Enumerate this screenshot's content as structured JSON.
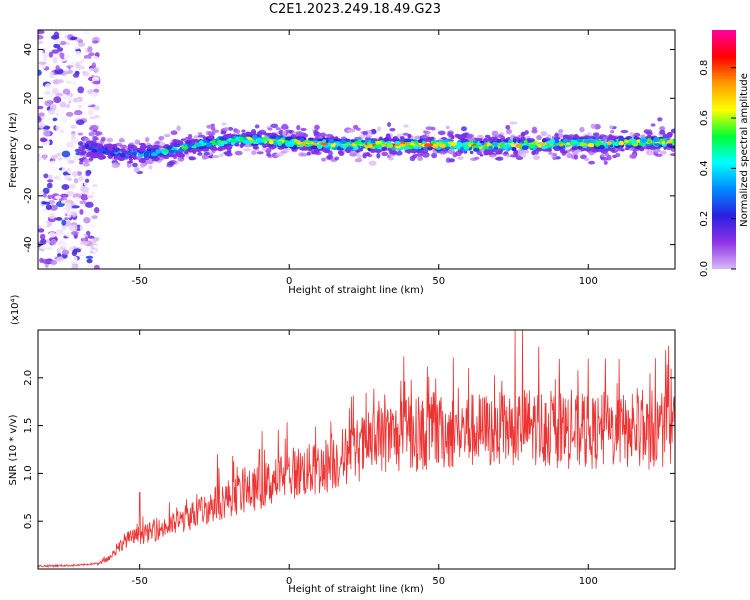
{
  "figure_title": "C2E1.2023.249.18.49.G23",
  "chart_data": [
    {
      "type": "heatmap",
      "xlabel": "Height of straight line (km)",
      "ylabel": "Frequency (Hz)",
      "xlim": [
        -84,
        129
      ],
      "ylim": [
        -50,
        48
      ],
      "xticks": [
        -50,
        0,
        50,
        100
      ],
      "yticks": [
        -40,
        -20,
        0,
        20,
        40
      ],
      "colorbar": {
        "label": "Normalized spectral amplitude",
        "range": [
          0.0,
          0.95
        ],
        "ticks": [
          0.0,
          0.2,
          0.4,
          0.6,
          0.8
        ],
        "tick_labels": [
          "0.0",
          "0.2",
          "0.4",
          "0.6",
          "0.8"
        ],
        "colormap": [
          "#ffffff",
          "#d9b8f5",
          "#8f33e8",
          "#2a1fe0",
          "#0088ff",
          "#00ffff",
          "#00ff33",
          "#ffff00",
          "#ff9900",
          "#ff0000",
          "#ff00a0"
        ]
      },
      "signal_band": {
        "x": [
          -75,
          -65,
          -55,
          -45,
          -35,
          -25,
          -15,
          -5,
          5,
          15,
          25,
          35,
          45,
          55,
          65,
          75,
          85,
          95,
          105,
          115,
          125
        ],
        "center_freq_hz": [
          0.5,
          -0.5,
          -3,
          -2.5,
          0,
          2,
          3,
          2.5,
          1.5,
          1,
          1,
          1,
          1,
          1,
          0.5,
          1,
          1,
          1.5,
          1.5,
          2,
          2
        ],
        "peak_amplitude": [
          0.3,
          0.35,
          0.45,
          0.5,
          0.55,
          0.6,
          0.65,
          0.7,
          0.75,
          0.75,
          0.8,
          0.8,
          0.8,
          0.8,
          0.75,
          0.75,
          0.75,
          0.75,
          0.7,
          0.7,
          0.7
        ]
      },
      "noise_region_x": [
        -84,
        -64
      ]
    },
    {
      "type": "line",
      "xlabel": "Height of straight line (km)",
      "ylabel": "SNR (10 * v/v)",
      "y_multiplier": "(x10⁴)",
      "xlim": [
        -84,
        129
      ],
      "ylim": [
        0,
        2.5
      ],
      "xticks": [
        -50,
        0,
        50,
        100
      ],
      "yticks": [
        0.5,
        1.0,
        1.5,
        2.0
      ],
      "ytick_labels": [
        "0.5",
        "1.0",
        "1.5",
        "2.0"
      ],
      "color": "#ee3333",
      "trend": {
        "x": [
          -84,
          -70,
          -64,
          -60,
          -55,
          -50,
          -40,
          -30,
          -20,
          -10,
          0,
          10,
          20,
          30,
          40,
          50,
          60,
          70,
          80,
          90,
          100,
          110,
          120,
          129
        ],
        "y": [
          0.02,
          0.03,
          0.05,
          0.12,
          0.3,
          0.35,
          0.45,
          0.6,
          0.75,
          0.85,
          1.0,
          1.05,
          1.2,
          1.35,
          1.4,
          1.42,
          1.45,
          1.45,
          1.5,
          1.45,
          1.42,
          1.45,
          1.42,
          1.45
        ]
      },
      "peaks": [
        {
          "x": -50,
          "y": 0.8
        },
        {
          "x": -24,
          "y": 1.2
        },
        {
          "x": -10,
          "y": 1.25
        },
        {
          "x": 40,
          "y": 1.8
        },
        {
          "x": 60,
          "y": 2.1
        },
        {
          "x": 78,
          "y": 2.5
        },
        {
          "x": 100,
          "y": 2.2
        }
      ]
    }
  ]
}
